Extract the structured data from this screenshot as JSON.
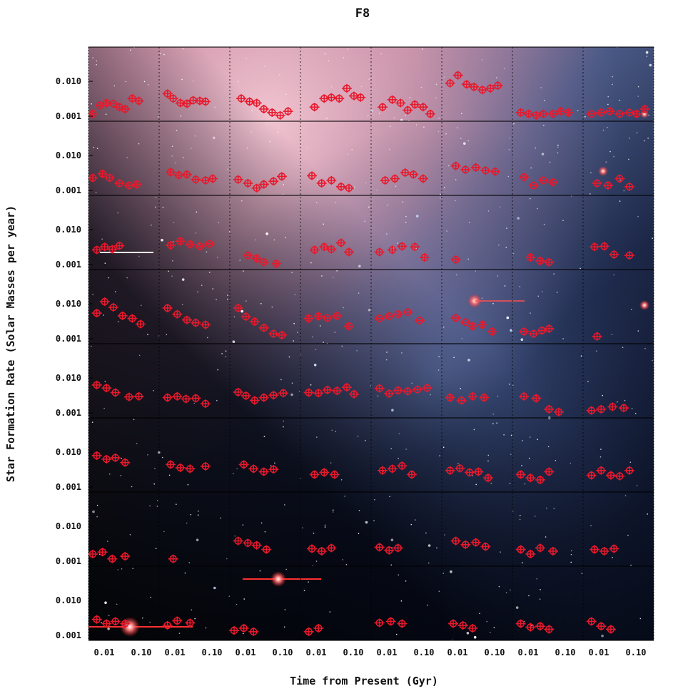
{
  "chart_data": {
    "type": "scatter",
    "title": "F8",
    "xlabel": "Time from Present (Gyr)",
    "ylabel": "Star Formation Rate (Solar Masses per year)",
    "grid_rows": 8,
    "grid_cols": 8,
    "x_scale": "log",
    "y_scale": "log",
    "xlim": [
      0.003,
      0.25
    ],
    "ylim": [
      0.001,
      0.05
    ],
    "xtick_labels": [
      "0.01",
      "0.10"
    ],
    "ytick_labels": [
      "0.010",
      "0.001"
    ],
    "background": "galaxy photograph (pink nebulous disk upper-left fading to blue, dark starfield lower-left)",
    "marker_color": "#e8192c",
    "marker_style": "open circle with x and y error bars",
    "panel_series": [
      [
        [
          0.003,
          0.0012
        ],
        [
          0.005,
          0.002
        ],
        [
          0.008,
          0.0023
        ],
        [
          0.013,
          0.0022
        ],
        [
          0.02,
          0.0018
        ],
        [
          0.03,
          0.0016
        ],
        [
          0.05,
          0.003
        ],
        [
          0.08,
          0.0026
        ]
      ],
      [
        [
          0.004,
          0.004
        ],
        [
          0.006,
          0.003
        ],
        [
          0.01,
          0.0023
        ],
        [
          0.016,
          0.0022
        ],
        [
          0.025,
          0.0027
        ],
        [
          0.04,
          0.0026
        ],
        [
          0.06,
          0.0025
        ]
      ],
      [
        [
          0.005,
          0.003
        ],
        [
          0.009,
          0.0025
        ],
        [
          0.015,
          0.0023
        ],
        [
          0.025,
          0.0016
        ],
        [
          0.045,
          0.0013
        ],
        [
          0.08,
          0.0011
        ],
        [
          0.14,
          0.0014
        ]
      ],
      [
        [
          0.006,
          0.0018
        ],
        [
          0.012,
          0.003
        ],
        [
          0.02,
          0.0032
        ],
        [
          0.035,
          0.003
        ],
        [
          0.06,
          0.0055
        ],
        [
          0.1,
          0.0035
        ],
        [
          0.16,
          0.0032
        ]
      ],
      [
        [
          0.005,
          0.0018
        ],
        [
          0.01,
          0.0028
        ],
        [
          0.018,
          0.0023
        ],
        [
          0.03,
          0.0015
        ],
        [
          0.05,
          0.0021
        ],
        [
          0.09,
          0.0018
        ],
        [
          0.15,
          0.0012
        ]
      ],
      [
        [
          0.004,
          0.0075
        ],
        [
          0.007,
          0.012
        ],
        [
          0.013,
          0.007
        ],
        [
          0.022,
          0.006
        ],
        [
          0.04,
          0.005
        ],
        [
          0.07,
          0.0055
        ],
        [
          0.12,
          0.0065
        ]
      ],
      [
        [
          0.004,
          0.0013
        ],
        [
          0.007,
          0.0012
        ],
        [
          0.012,
          0.0011
        ],
        [
          0.02,
          0.0012
        ],
        [
          0.04,
          0.0012
        ],
        [
          0.07,
          0.0014
        ],
        [
          0.12,
          0.0013
        ]
      ],
      [
        [
          0.004,
          0.0012
        ],
        [
          0.008,
          0.0013
        ],
        [
          0.015,
          0.0014
        ],
        [
          0.03,
          0.0012
        ],
        [
          0.06,
          0.0013
        ],
        [
          0.1,
          0.0012
        ],
        [
          0.18,
          0.0016
        ]
      ],
      [
        [
          0.003,
          0.0022
        ],
        [
          0.006,
          0.0028
        ],
        [
          0.01,
          0.0022
        ],
        [
          0.02,
          0.0016
        ],
        [
          0.04,
          0.0014
        ],
        [
          0.07,
          0.0015
        ]
      ],
      [
        [
          0.005,
          0.0031
        ],
        [
          0.009,
          0.0026
        ],
        [
          0.016,
          0.0027
        ],
        [
          0.03,
          0.002
        ],
        [
          0.06,
          0.0019
        ],
        [
          0.1,
          0.0021
        ]
      ],
      [
        [
          0.004,
          0.002
        ],
        [
          0.008,
          0.0016
        ],
        [
          0.015,
          0.0012
        ],
        [
          0.025,
          0.0015
        ],
        [
          0.05,
          0.0018
        ],
        [
          0.09,
          0.0024
        ]
      ],
      [
        [
          0.005,
          0.0025
        ],
        [
          0.01,
          0.0016
        ],
        [
          0.02,
          0.0019
        ],
        [
          0.04,
          0.0013
        ],
        [
          0.07,
          0.0012
        ]
      ],
      [
        [
          0.006,
          0.0019
        ],
        [
          0.012,
          0.0021
        ],
        [
          0.025,
          0.003
        ],
        [
          0.045,
          0.0027
        ],
        [
          0.09,
          0.0021
        ]
      ],
      [
        [
          0.006,
          0.0045
        ],
        [
          0.012,
          0.0036
        ],
        [
          0.025,
          0.0041
        ],
        [
          0.05,
          0.0034
        ],
        [
          0.1,
          0.0032
        ]
      ],
      [
        [
          0.005,
          0.0023
        ],
        [
          0.01,
          0.0014
        ],
        [
          0.02,
          0.0019
        ],
        [
          0.04,
          0.0017
        ]
      ],
      [
        [
          0.006,
          0.0016
        ],
        [
          0.013,
          0.0014
        ],
        [
          0.03,
          0.0021
        ],
        [
          0.06,
          0.0013
        ]
      ],
      [
        [
          0.004,
          0.0025
        ],
        [
          0.007,
          0.003
        ],
        [
          0.012,
          0.0026
        ],
        [
          0.02,
          0.0032
        ]
      ],
      [
        [
          0.005,
          0.0033
        ],
        [
          0.01,
          0.0042
        ],
        [
          0.02,
          0.0035
        ],
        [
          0.04,
          0.0031
        ],
        [
          0.08,
          0.0036
        ]
      ],
      [
        [
          0.008,
          0.0018
        ],
        [
          0.015,
          0.0015
        ],
        [
          0.025,
          0.0012
        ],
        [
          0.06,
          0.0011
        ]
      ],
      [
        [
          0.006,
          0.0025
        ],
        [
          0.012,
          0.003
        ],
        [
          0.02,
          0.0026
        ],
        [
          0.04,
          0.0038
        ],
        [
          0.07,
          0.0022
        ]
      ],
      [
        [
          0.004,
          0.0022
        ],
        [
          0.01,
          0.0025
        ],
        [
          0.02,
          0.0031
        ],
        [
          0.05,
          0.003
        ],
        [
          0.1,
          0.0016
        ]
      ],
      [
        [
          0.006,
          0.0014
        ]
      ],
      [
        [
          0.008,
          0.0016
        ],
        [
          0.016,
          0.0013
        ],
        [
          0.03,
          0.0012
        ]
      ],
      [
        [
          0.005,
          0.003
        ],
        [
          0.01,
          0.0031
        ],
        [
          0.02,
          0.0019
        ],
        [
          0.06,
          0.0018
        ]
      ],
      [
        [
          0.004,
          0.0048
        ],
        [
          0.007,
          0.0095
        ],
        [
          0.013,
          0.0068
        ],
        [
          0.025,
          0.0041
        ],
        [
          0.05,
          0.0035
        ],
        [
          0.09,
          0.0025
        ]
      ],
      [
        [
          0.004,
          0.0065
        ],
        [
          0.008,
          0.0045
        ],
        [
          0.016,
          0.0032
        ],
        [
          0.03,
          0.0027
        ],
        [
          0.06,
          0.0024
        ]
      ],
      [
        [
          0.004,
          0.0065
        ],
        [
          0.007,
          0.0039
        ],
        [
          0.013,
          0.0029
        ],
        [
          0.025,
          0.002
        ],
        [
          0.05,
          0.0014
        ],
        [
          0.09,
          0.0013
        ]
      ],
      [
        [
          0.004,
          0.0035
        ],
        [
          0.008,
          0.004
        ],
        [
          0.015,
          0.0036
        ],
        [
          0.03,
          0.0041
        ],
        [
          0.07,
          0.0022
        ]
      ],
      [
        [
          0.004,
          0.0035
        ],
        [
          0.008,
          0.004
        ],
        [
          0.015,
          0.0045
        ],
        [
          0.03,
          0.0051
        ],
        [
          0.07,
          0.0031
        ]
      ],
      [
        [
          0.006,
          0.0036
        ],
        [
          0.012,
          0.0028
        ],
        [
          0.02,
          0.0022
        ],
        [
          0.04,
          0.0024
        ],
        [
          0.08,
          0.0016
        ]
      ],
      [
        [
          0.005,
          0.0016
        ],
        [
          0.01,
          0.0014
        ],
        [
          0.018,
          0.0017
        ],
        [
          0.03,
          0.0019
        ]
      ],
      [
        [
          0.006,
          0.0012
        ]
      ],
      [
        [
          0.004,
          0.0055
        ],
        [
          0.008,
          0.0046
        ],
        [
          0.015,
          0.0035
        ],
        [
          0.04,
          0.0027
        ],
        [
          0.08,
          0.0028
        ]
      ],
      [
        [
          0.004,
          0.0026
        ],
        [
          0.008,
          0.0028
        ],
        [
          0.015,
          0.0024
        ],
        [
          0.03,
          0.0025
        ],
        [
          0.06,
          0.0018
        ]
      ],
      [
        [
          0.004,
          0.0036
        ],
        [
          0.007,
          0.0029
        ],
        [
          0.013,
          0.0022
        ],
        [
          0.025,
          0.0026
        ],
        [
          0.05,
          0.003
        ],
        [
          0.1,
          0.0034
        ]
      ],
      [
        [
          0.004,
          0.0035
        ],
        [
          0.008,
          0.0034
        ],
        [
          0.015,
          0.0041
        ],
        [
          0.03,
          0.0039
        ],
        [
          0.06,
          0.0048
        ],
        [
          0.1,
          0.0032
        ]
      ],
      [
        [
          0.004,
          0.0045
        ],
        [
          0.008,
          0.0033
        ],
        [
          0.015,
          0.004
        ],
        [
          0.03,
          0.0038
        ],
        [
          0.06,
          0.0042
        ],
        [
          0.12,
          0.0046
        ]
      ],
      [
        [
          0.004,
          0.0026
        ],
        [
          0.009,
          0.0022
        ],
        [
          0.02,
          0.0028
        ],
        [
          0.045,
          0.0026
        ]
      ],
      [
        [
          0.005,
          0.0028
        ],
        [
          0.012,
          0.0025
        ],
        [
          0.03,
          0.0013
        ],
        [
          0.06,
          0.0011
        ]
      ],
      [
        [
          0.004,
          0.0012
        ],
        [
          0.008,
          0.0013
        ],
        [
          0.018,
          0.0015
        ],
        [
          0.04,
          0.0014
        ]
      ],
      [
        [
          0.004,
          0.0068
        ],
        [
          0.008,
          0.0055
        ],
        [
          0.015,
          0.006
        ],
        [
          0.03,
          0.0045
        ]
      ],
      [
        [
          0.005,
          0.004
        ],
        [
          0.01,
          0.0033
        ],
        [
          0.02,
          0.0031
        ],
        [
          0.06,
          0.0036
        ]
      ],
      [
        [
          0.006,
          0.004
        ],
        [
          0.012,
          0.0031
        ],
        [
          0.025,
          0.0026
        ],
        [
          0.05,
          0.003
        ]
      ],
      [
        [
          0.006,
          0.0022
        ],
        [
          0.012,
          0.0025
        ],
        [
          0.025,
          0.0022
        ]
      ],
      [
        [
          0.005,
          0.0028
        ],
        [
          0.01,
          0.0031
        ],
        [
          0.02,
          0.0037
        ],
        [
          0.04,
          0.0022
        ]
      ],
      [
        [
          0.004,
          0.0028
        ],
        [
          0.008,
          0.0032
        ],
        [
          0.016,
          0.0025
        ],
        [
          0.03,
          0.0026
        ],
        [
          0.06,
          0.0018
        ]
      ],
      [
        [
          0.004,
          0.0022
        ],
        [
          0.008,
          0.0018
        ],
        [
          0.016,
          0.0016
        ],
        [
          0.03,
          0.0026
        ]
      ],
      [
        [
          0.004,
          0.0021
        ],
        [
          0.008,
          0.0028
        ],
        [
          0.016,
          0.0021
        ],
        [
          0.03,
          0.002
        ],
        [
          0.06,
          0.0028
        ]
      ],
      [
        [
          0.003,
          0.0016
        ],
        [
          0.006,
          0.0018
        ],
        [
          0.012,
          0.0012
        ],
        [
          0.03,
          0.0014
        ]
      ],
      [
        [
          0.006,
          0.0012
        ]
      ],
      [
        [
          0.004,
          0.0035
        ],
        [
          0.008,
          0.0031
        ],
        [
          0.015,
          0.0027
        ],
        [
          0.03,
          0.0021
        ]
      ],
      [
        [
          0.005,
          0.0022
        ],
        [
          0.01,
          0.0019
        ],
        [
          0.02,
          0.0023
        ]
      ],
      [
        [
          0.004,
          0.0024
        ],
        [
          0.008,
          0.002
        ],
        [
          0.015,
          0.0023
        ]
      ],
      [
        [
          0.006,
          0.0035
        ],
        [
          0.012,
          0.0028
        ],
        [
          0.025,
          0.0032
        ],
        [
          0.05,
          0.0025
        ]
      ],
      [
        [
          0.004,
          0.0021
        ],
        [
          0.008,
          0.0016
        ],
        [
          0.016,
          0.0023
        ],
        [
          0.04,
          0.0019
        ]
      ],
      [
        [
          0.005,
          0.0021
        ],
        [
          0.01,
          0.0019
        ],
        [
          0.02,
          0.0022
        ]
      ],
      [
        [
          0.004,
          0.0027
        ],
        [
          0.008,
          0.0021
        ],
        [
          0.015,
          0.0024
        ],
        [
          0.03,
          0.0021
        ]
      ],
      [
        [
          0.004,
          0.0019
        ],
        [
          0.008,
          0.0025
        ],
        [
          0.02,
          0.0022
        ]
      ],
      [
        [
          0.003,
          0.0014
        ],
        [
          0.006,
          0.0016
        ],
        [
          0.012,
          0.0013
        ]
      ],
      [
        [
          0.004,
          0.0013
        ],
        [
          0.008,
          0.0016
        ]
      ],
      [
        [
          0.004,
          0.0022
        ],
        [
          0.009,
          0.0024
        ],
        [
          0.02,
          0.0021
        ]
      ],
      [
        [
          0.005,
          0.0021
        ],
        [
          0.01,
          0.0019
        ],
        [
          0.02,
          0.0016
        ]
      ],
      [
        [
          0.004,
          0.0021
        ],
        [
          0.008,
          0.0017
        ],
        [
          0.016,
          0.0018
        ],
        [
          0.03,
          0.0015
        ]
      ],
      [
        [
          0.004,
          0.0024
        ],
        [
          0.008,
          0.0018
        ],
        [
          0.016,
          0.0015
        ]
      ]
    ]
  }
}
